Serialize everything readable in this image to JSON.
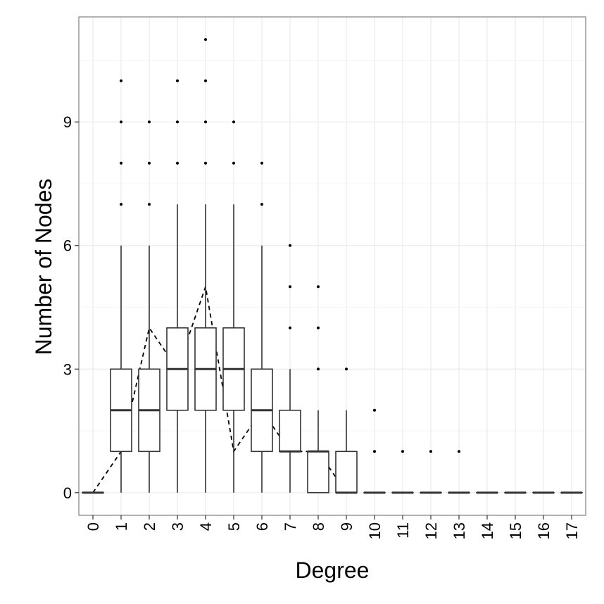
{
  "chart_data": {
    "type": "boxplot",
    "xlabel": "Degree",
    "ylabel": "Number of Nodes",
    "categories": [
      "0",
      "1",
      "2",
      "3",
      "4",
      "5",
      "6",
      "7",
      "8",
      "9",
      "10",
      "11",
      "12",
      "13",
      "14",
      "15",
      "16",
      "17"
    ],
    "y_ticks": [
      0,
      3,
      6,
      9
    ],
    "ylim": [
      -0.55,
      11.55
    ],
    "grid": true,
    "legend": "none",
    "boxes": [
      {
        "x": "0",
        "lower_whisker": 0,
        "q1": 0,
        "median": 0,
        "q3": 0,
        "upper_whisker": 0,
        "outliers": []
      },
      {
        "x": "1",
        "lower_whisker": 0,
        "q1": 1,
        "median": 2,
        "q3": 3,
        "upper_whisker": 6,
        "outliers": [
          7,
          8,
          9,
          10
        ]
      },
      {
        "x": "2",
        "lower_whisker": 0,
        "q1": 1,
        "median": 2,
        "q3": 3,
        "upper_whisker": 6,
        "outliers": [
          7,
          8,
          9
        ]
      },
      {
        "x": "3",
        "lower_whisker": 0,
        "q1": 2,
        "median": 3,
        "q3": 4,
        "upper_whisker": 7,
        "outliers": [
          8,
          9,
          10
        ]
      },
      {
        "x": "4",
        "lower_whisker": 0,
        "q1": 2,
        "median": 3,
        "q3": 4,
        "upper_whisker": 7,
        "outliers": [
          8,
          9,
          10,
          11
        ]
      },
      {
        "x": "5",
        "lower_whisker": 0,
        "q1": 2,
        "median": 3,
        "q3": 4,
        "upper_whisker": 7,
        "outliers": [
          8,
          9
        ]
      },
      {
        "x": "6",
        "lower_whisker": 0,
        "q1": 1,
        "median": 2,
        "q3": 3,
        "upper_whisker": 6,
        "outliers": [
          7,
          8
        ]
      },
      {
        "x": "7",
        "lower_whisker": 0,
        "q1": 1,
        "median": 1,
        "q3": 2,
        "upper_whisker": 3,
        "outliers": [
          4,
          5,
          6
        ]
      },
      {
        "x": "8",
        "lower_whisker": 0,
        "q1": 0,
        "median": 1,
        "q3": 1,
        "upper_whisker": 2,
        "outliers": [
          3,
          4,
          5
        ]
      },
      {
        "x": "9",
        "lower_whisker": 0,
        "q1": 0,
        "median": 0,
        "q3": 1,
        "upper_whisker": 2,
        "outliers": [
          3
        ]
      },
      {
        "x": "10",
        "lower_whisker": 0,
        "q1": 0,
        "median": 0,
        "q3": 0,
        "upper_whisker": 0,
        "outliers": [
          1,
          2
        ]
      },
      {
        "x": "11",
        "lower_whisker": 0,
        "q1": 0,
        "median": 0,
        "q3": 0,
        "upper_whisker": 0,
        "outliers": [
          1
        ]
      },
      {
        "x": "12",
        "lower_whisker": 0,
        "q1": 0,
        "median": 0,
        "q3": 0,
        "upper_whisker": 0,
        "outliers": [
          1
        ]
      },
      {
        "x": "13",
        "lower_whisker": 0,
        "q1": 0,
        "median": 0,
        "q3": 0,
        "upper_whisker": 0,
        "outliers": [
          1
        ]
      },
      {
        "x": "14",
        "lower_whisker": 0,
        "q1": 0,
        "median": 0,
        "q3": 0,
        "upper_whisker": 0,
        "outliers": []
      },
      {
        "x": "15",
        "lower_whisker": 0,
        "q1": 0,
        "median": 0,
        "q3": 0,
        "upper_whisker": 0,
        "outliers": []
      },
      {
        "x": "16",
        "lower_whisker": 0,
        "q1": 0,
        "median": 0,
        "q3": 0,
        "upper_whisker": 0,
        "outliers": []
      },
      {
        "x": "17",
        "lower_whisker": 0,
        "q1": 0,
        "median": 0,
        "q3": 0,
        "upper_whisker": 0,
        "outliers": []
      }
    ],
    "reference_line": {
      "style": "dashed",
      "x": [
        "0",
        "1",
        "2",
        "3",
        "4",
        "5",
        "6",
        "7",
        "8",
        "9"
      ],
      "values": [
        0,
        1,
        4,
        3,
        5,
        1,
        2,
        1,
        1,
        0
      ]
    },
    "colors": {
      "box_fill": "#ffffff",
      "stroke": "#333333",
      "grid": "#ebebeb",
      "panel_border": "#7f7f7f",
      "text": "#000000"
    }
  }
}
